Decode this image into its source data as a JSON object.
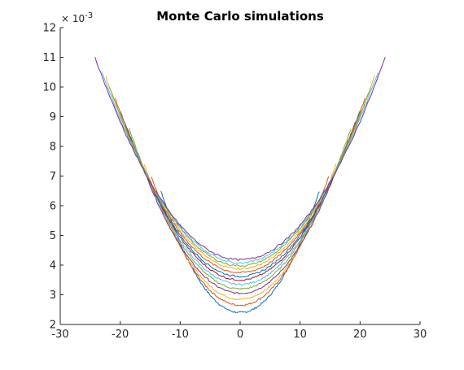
{
  "chart_data": {
    "type": "line",
    "title": "Monte Carlo simulations",
    "xlabel": "",
    "ylabel": "",
    "xlim": [
      -30,
      30
    ],
    "ylim": [
      0.002,
      0.012
    ],
    "x_ticks": [
      -30,
      -20,
      -10,
      0,
      10,
      20,
      30
    ],
    "y_ticks": [
      2,
      3,
      4,
      5,
      6,
      7,
      8,
      9,
      10,
      11,
      12
    ],
    "y_tick_labels": [
      "2",
      "3",
      "4",
      "5",
      "6",
      "7",
      "8",
      "9",
      "10",
      "11",
      "12"
    ],
    "y_exponent_base": "× 10",
    "y_exponent_power": "-3",
    "grid": false,
    "legend": "none",
    "series": [
      {
        "color": "#0072BD",
        "min": 0.0024,
        "x_start": -13.2,
        "x_end": 13.2,
        "y_end": 0.0065
      },
      {
        "color": "#D95319",
        "min": 0.00265,
        "x_start": -14.8,
        "x_end": 14.8,
        "y_end": 0.007
      },
      {
        "color": "#EDB120",
        "min": 0.00285,
        "x_start": -16.0,
        "x_end": 16.0,
        "y_end": 0.0074
      },
      {
        "color": "#7E2F8E",
        "min": 0.00305,
        "x_start": -16.8,
        "x_end": 16.8,
        "y_end": 0.0076
      },
      {
        "color": "#77AC30",
        "min": 0.0032,
        "x_start": -18.5,
        "x_end": 18.5,
        "y_end": 0.0086
      },
      {
        "color": "#4DBEEE",
        "min": 0.00335,
        "x_start": -18.0,
        "x_end": 18.0,
        "y_end": 0.0082
      },
      {
        "color": "#A2142F",
        "min": 0.0035,
        "x_start": -19.2,
        "x_end": 19.2,
        "y_end": 0.0088
      },
      {
        "color": "#0072BD",
        "min": 0.00362,
        "x_start": -20.0,
        "x_end": 20.0,
        "y_end": 0.0092
      },
      {
        "color": "#D95319",
        "min": 0.00375,
        "x_start": -20.8,
        "x_end": 20.8,
        "y_end": 0.0096
      },
      {
        "color": "#EDB120",
        "min": 0.00388,
        "x_start": -22.4,
        "x_end": 22.4,
        "y_end": 0.01035
      },
      {
        "color": "#77AC30",
        "min": 0.00398,
        "x_start": -21.8,
        "x_end": 21.8,
        "y_end": 0.01
      },
      {
        "color": "#4DBEEE",
        "min": 0.00408,
        "x_start": -23.0,
        "x_end": 23.0,
        "y_end": 0.0105
      },
      {
        "color": "#7E2F8E",
        "min": 0.00418,
        "x_start": -24.2,
        "x_end": 24.2,
        "y_end": 0.011
      }
    ]
  }
}
